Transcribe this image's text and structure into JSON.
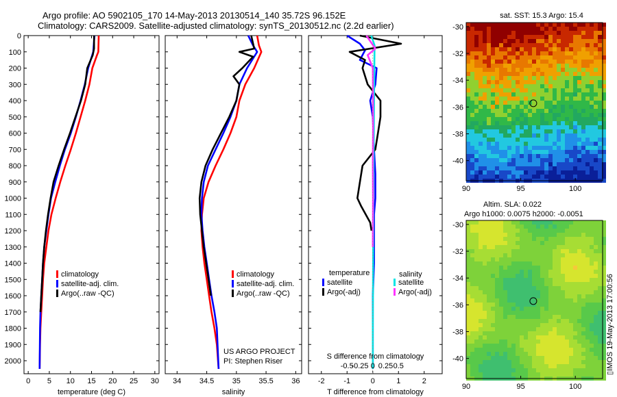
{
  "header": {
    "title_line1": "Argo profile: AO 5902105_170 14-May-2013 20130514_140 35.72S 96.152E",
    "title_line2": "Climatology: CARS2009. Satellite-adjusted climatology: synTS_20130512.nc (2.2d earlier)"
  },
  "colors": {
    "climatology": "#ff0000",
    "satellite": "#0000ff",
    "argo": "#000000",
    "salinity_satellite": "#00e5e5",
    "salinity_argo": "#ff33ff"
  },
  "chart_data": [
    {
      "type": "line",
      "panel": "temperature",
      "xlabel": "temperature (deg C)",
      "xlim": [
        -1,
        31
      ],
      "xticks": [
        0,
        5,
        10,
        15,
        20,
        25,
        30
      ],
      "ylim": [
        2080,
        0
      ],
      "yticks": [
        0,
        100,
        200,
        300,
        400,
        500,
        600,
        700,
        800,
        900,
        1000,
        1100,
        1200,
        1300,
        1400,
        1500,
        1600,
        1700,
        1800,
        1900,
        2000
      ],
      "legend": [
        "climatology",
        "satellite-adj. clim.",
        "Argo(..raw -QC)"
      ],
      "series": [
        {
          "name": "climatology",
          "color": "#ff0000",
          "x": [
            16.7,
            16.6,
            16.3,
            15.2,
            14.5,
            13.5,
            12.4,
            11.3,
            10.1,
            8.8,
            7.6,
            6.5,
            5.5,
            4.8,
            4.3,
            3.8,
            3.5,
            3.3,
            3.1,
            2.9,
            2.8,
            2.7
          ],
          "y": [
            0,
            100,
            120,
            200,
            300,
            400,
            500,
            600,
            700,
            800,
            900,
            1000,
            1100,
            1200,
            1300,
            1400,
            1500,
            1600,
            1700,
            1800,
            1900,
            2050
          ]
        },
        {
          "name": "satellite-adj. clim.",
          "color": "#0000ff",
          "x": [
            15.7,
            15.4,
            14.2,
            13.4,
            12.4,
            11.3,
            10.1,
            8.7,
            7.5,
            6.4,
            5.4,
            4.8,
            4.3,
            3.8,
            3.5,
            3.3,
            3.1,
            2.9,
            2.8,
            2.7
          ],
          "y": [
            0,
            100,
            200,
            300,
            400,
            500,
            600,
            700,
            800,
            900,
            1000,
            1100,
            1200,
            1300,
            1400,
            1500,
            1600,
            1700,
            1800,
            2050
          ]
        },
        {
          "name": "Argo(..raw -QC)",
          "color": "#000000",
          "x": [
            15.6,
            15.6,
            15.3,
            14.0,
            13.5,
            12.5,
            11.2,
            9.9,
            8.5,
            7.2,
            6.0,
            5.3,
            4.7,
            4.2,
            3.8,
            3.5,
            3.3,
            3.1,
            2.9
          ],
          "y": [
            0,
            80,
            120,
            200,
            300,
            400,
            500,
            600,
            700,
            800,
            900,
            1000,
            1100,
            1200,
            1300,
            1400,
            1500,
            1600,
            1700
          ]
        }
      ]
    },
    {
      "type": "line",
      "panel": "salinity",
      "xlabel": "salinity",
      "xlim": [
        33.8,
        36.1
      ],
      "xticks": [
        34,
        34.5,
        35,
        35.5,
        36
      ],
      "ylim": [
        2080,
        0
      ],
      "legend": [
        "climatology",
        "satellite-adj. clim.",
        "Argo(..raw -QC)"
      ],
      "annotation": [
        "US ARGO PROJECT",
        "PI: Stephen Riser"
      ],
      "series": [
        {
          "name": "climatology",
          "color": "#ff0000",
          "x": [
            35.35,
            35.38,
            35.42,
            35.3,
            35.15,
            35.05,
            35.0,
            34.9,
            34.78,
            34.65,
            34.53,
            34.45,
            34.42,
            34.41,
            34.43,
            34.46,
            34.5,
            34.54,
            34.58,
            34.63,
            34.67,
            34.7
          ],
          "y": [
            0,
            60,
            100,
            200,
            300,
            400,
            500,
            600,
            700,
            800,
            900,
            1000,
            1100,
            1200,
            1300,
            1400,
            1500,
            1600,
            1700,
            1800,
            1900,
            2050
          ]
        },
        {
          "name": "satellite-adj. clim.",
          "color": "#0000ff",
          "x": [
            35.2,
            35.28,
            35.35,
            35.18,
            35.05,
            35.0,
            34.9,
            34.78,
            34.65,
            34.52,
            34.45,
            34.42,
            34.41,
            34.43,
            34.46,
            34.5,
            34.54,
            34.58,
            34.63,
            34.67,
            34.7
          ],
          "y": [
            0,
            60,
            100,
            200,
            300,
            400,
            500,
            600,
            700,
            800,
            900,
            1000,
            1100,
            1200,
            1300,
            1400,
            1500,
            1600,
            1700,
            1800,
            2050
          ]
        },
        {
          "name": "Argo(..raw -QC)",
          "color": "#000000",
          "x": [
            35.25,
            35.3,
            35.05,
            35.28,
            35.1,
            34.95,
            35.05,
            35.0,
            34.88,
            34.74,
            34.6,
            34.48,
            34.41,
            34.38,
            34.39,
            34.42,
            34.45,
            34.49,
            34.53,
            34.57
          ],
          "y": [
            0,
            80,
            100,
            130,
            200,
            250,
            300,
            400,
            500,
            600,
            700,
            800,
            900,
            1000,
            1100,
            1200,
            1300,
            1400,
            1500,
            1600
          ]
        }
      ]
    },
    {
      "type": "line",
      "panel": "difference",
      "xlabel": "T difference from climatology",
      "xlabel_top": "S difference from climatology",
      "xlim": [
        -2.5,
        2.7
      ],
      "xticks": [
        -2,
        -1,
        0,
        1,
        2
      ],
      "sticks": [
        -0.5,
        -0.25,
        0,
        0.25,
        0.5
      ],
      "stick_labels": [
        "-0.5",
        "-0.25",
        "0",
        "0.25",
        "0.5"
      ],
      "ylim": [
        2080,
        0
      ],
      "legend_temperature": {
        "heading": "temperature",
        "items": [
          "satellite",
          "Argo(-adj)"
        ]
      },
      "legend_salinity": {
        "heading": "salinity",
        "items": [
          "satellite",
          "Argo(-adj)"
        ]
      },
      "series": [
        {
          "name": "satellite",
          "color": "#0000ff",
          "x": [
            -1.0,
            -0.5,
            -0.3,
            -0.5,
            0.15,
            0.1,
            -0.1,
            0.0,
            0.05,
            0.1,
            0.1,
            0.05,
            0.05,
            0.05,
            0.0,
            0.0,
            0.0
          ],
          "y": [
            0,
            50,
            90,
            150,
            200,
            300,
            400,
            500,
            700,
            850,
            1000,
            1100,
            1200,
            1400,
            1600,
            1800,
            2050
          ]
        },
        {
          "name": "Argo(-adj)",
          "color": "#000000",
          "x": [
            -0.5,
            1.1,
            -0.9,
            -0.3,
            -0.4,
            -0.2,
            0.3,
            0.3,
            0.2,
            0.1,
            -0.4,
            -0.5,
            -0.6,
            -0.45,
            -0.1,
            -0.05
          ],
          "y": [
            0,
            50,
            100,
            150,
            200,
            300,
            400,
            500,
            600,
            700,
            800,
            900,
            1000,
            1050,
            1150,
            1200
          ]
        },
        {
          "name": "satellite",
          "color": "#00e5e5",
          "x": [
            -0.06,
            0.07,
            0.06,
            0.05,
            0.04,
            0.03,
            0.02,
            0.02,
            0.01,
            0.0,
            0.0
          ],
          "y": [
            0,
            60,
            200,
            400,
            600,
            800,
            1000,
            1200,
            1500,
            1800,
            2050
          ]
        },
        {
          "name": "Argo(-adj)",
          "color": "#ff33ff",
          "x": [
            -0.25,
            0.1,
            -0.2,
            0.0,
            0.01,
            0.01,
            0.0,
            0.01,
            0.0
          ],
          "y": [
            0,
            80,
            120,
            200,
            400,
            600,
            800,
            1000,
            1300
          ]
        }
      ]
    },
    {
      "type": "heatmap",
      "panel": "sst",
      "title": "sat. SST: 15.3 Argo: 15.4",
      "xlim": [
        90,
        102.5
      ],
      "ylim": [
        -41.5,
        -29.7
      ],
      "xticks": [
        90,
        95,
        100
      ],
      "yticks": [
        -30,
        -32,
        -34,
        -36,
        -38,
        -40
      ],
      "marker": {
        "lon": 96.15,
        "lat": -35.72
      }
    },
    {
      "type": "heatmap",
      "panel": "sla",
      "title_line1": "Altim. SLA: 0.022",
      "title_line2": "Argo h1000: 0.0075 h2000: -0.0051",
      "xlim": [
        90,
        102.5
      ],
      "ylim": [
        -41.5,
        -29.7
      ],
      "xticks": [
        90,
        95,
        100
      ],
      "yticks": [
        -30,
        -32,
        -34,
        -36,
        -38,
        -40
      ],
      "marker": {
        "lon": 96.15,
        "lat": -35.72
      }
    }
  ],
  "footer": {
    "credit": "▯IMOS 19-May-2013 17:00:56"
  }
}
